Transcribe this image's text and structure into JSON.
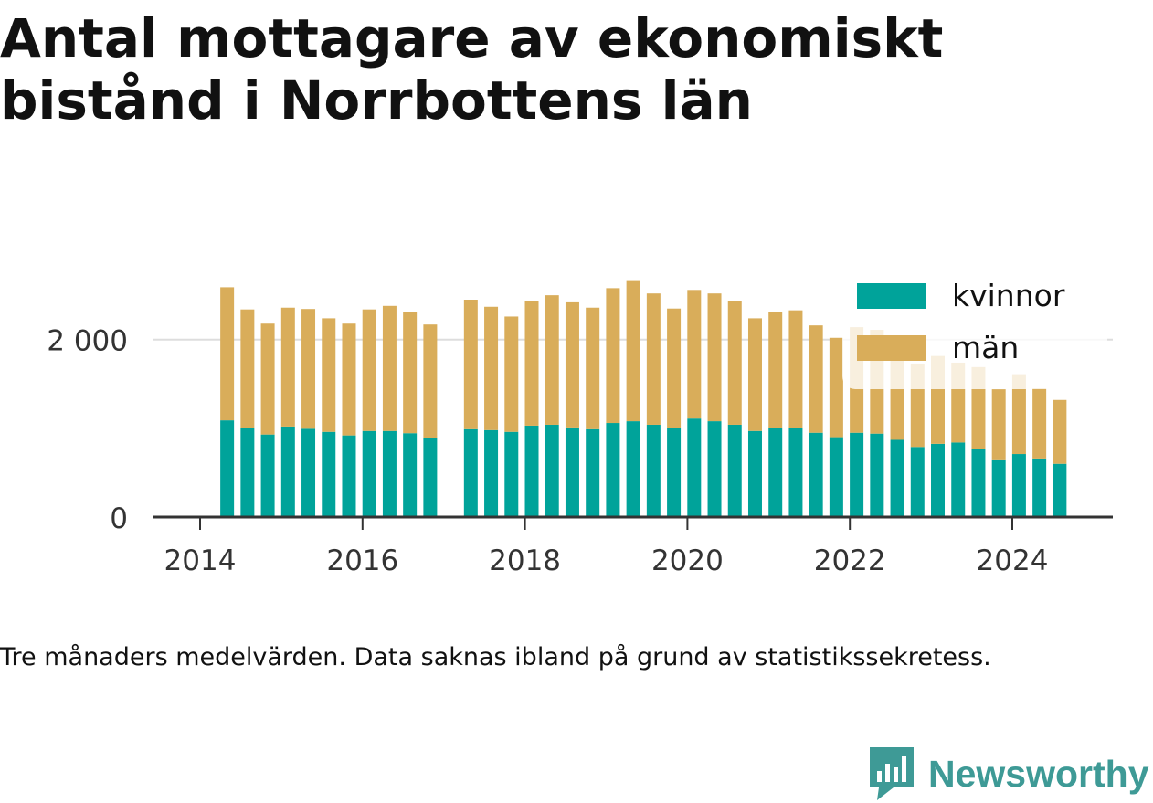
{
  "title": "Antal mottagare av ekonomiskt bistånd i Norrbottens län",
  "caption": "Tre månaders medelvärden. Data saknas ibland på grund av statistikssekretess.",
  "brand": {
    "name": "Newsworthy"
  },
  "colors": {
    "kvinnor": "#00a39a",
    "man": "#d9ad5a",
    "grid": "#dddddd",
    "axis": "#333333",
    "brand": "#3e9a96"
  },
  "chart_data": {
    "type": "bar",
    "stacked": true,
    "title": "Antal mottagare av ekonomiskt bistånd i Norrbottens län",
    "xlabel": "",
    "ylabel": "",
    "ylim": [
      0,
      2800
    ],
    "xlim": [
      "2013-10",
      "2025-06"
    ],
    "y_ticks": [
      {
        "value": 0,
        "label": "0"
      },
      {
        "value": 2000,
        "label": "2 000"
      }
    ],
    "x_ticks": [
      "2014",
      "2016",
      "2018",
      "2020",
      "2022",
      "2024"
    ],
    "legend": {
      "position": "top-right",
      "entries": [
        "kvinnor",
        "män"
      ]
    },
    "grid": true,
    "categories": [
      "2014-05",
      "2014-08",
      "2014-11",
      "2015-02",
      "2015-05",
      "2015-08",
      "2015-11",
      "2016-02",
      "2016-05",
      "2016-08",
      "2016-11",
      "2017-05",
      "2017-08",
      "2017-11",
      "2018-02",
      "2018-05",
      "2018-08",
      "2018-11",
      "2019-02",
      "2019-05",
      "2019-08",
      "2019-11",
      "2020-02",
      "2020-05",
      "2020-08",
      "2020-11",
      "2021-02",
      "2021-05",
      "2021-08",
      "2021-11",
      "2022-02",
      "2022-05",
      "2022-08",
      "2022-11",
      "2023-02",
      "2023-05",
      "2023-08",
      "2023-11",
      "2024-02",
      "2024-05",
      "2024-08"
    ],
    "series": [
      {
        "name": "kvinnor",
        "values": [
          1090,
          1000,
          930,
          1020,
          995,
          960,
          920,
          970,
          970,
          945,
          895,
          990,
          980,
          960,
          1030,
          1040,
          1010,
          990,
          1060,
          1080,
          1040,
          1000,
          1110,
          1080,
          1040,
          970,
          1000,
          1000,
          950,
          900,
          950,
          940,
          870,
          790,
          825,
          840,
          770,
          650,
          710,
          660,
          600
        ]
      },
      {
        "name": "män",
        "values": [
          1500,
          1340,
          1250,
          1340,
          1350,
          1280,
          1260,
          1370,
          1410,
          1370,
          1275,
          1460,
          1390,
          1300,
          1400,
          1460,
          1410,
          1370,
          1520,
          1580,
          1480,
          1350,
          1450,
          1440,
          1390,
          1270,
          1310,
          1330,
          1210,
          1120,
          1190,
          1170,
          1020,
          940,
          990,
          900,
          920,
          790,
          900,
          790,
          720
        ]
      }
    ]
  }
}
